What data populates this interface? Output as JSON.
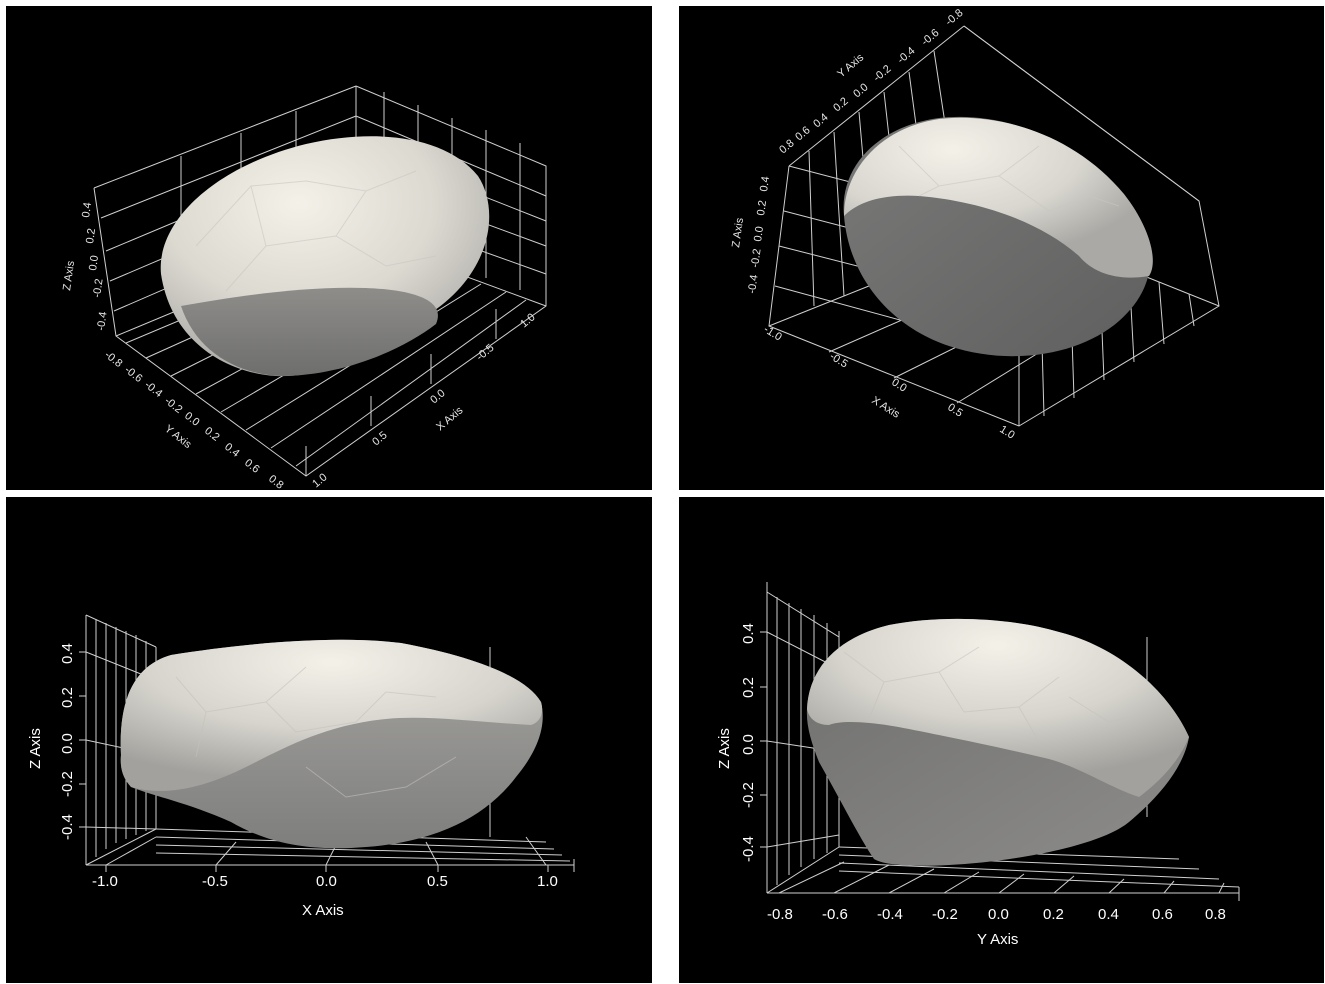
{
  "views": [
    {
      "x_axis": {
        "label": "X Axis",
        "ticks": [
          "-0.5",
          "0.0",
          "0.5",
          "1.0"
        ]
      },
      "y_axis": {
        "label": "Y Axis",
        "ticks": [
          "-0.8",
          "-0.6",
          "-0.4",
          "-0.2",
          "0.0",
          "0.2",
          "0.4",
          "0.6",
          "0.8"
        ]
      },
      "z_axis": {
        "label": "Z Axis",
        "ticks": [
          "-0.4",
          "-0.2",
          "0.0",
          "0.2",
          "0.4"
        ]
      },
      "x_axis_far_tick": "1.0"
    },
    {
      "x_axis": {
        "label": "X Axis",
        "ticks": [
          "-1.0",
          "-0.5",
          "0.0",
          "0.5",
          "1.0"
        ]
      },
      "y_axis": {
        "label": "Y Axis",
        "ticks": [
          "0.8",
          "0.6",
          "0.4",
          "0.2",
          "0.0",
          "-0.2",
          "-0.4",
          "-0.6",
          "-0.8"
        ]
      },
      "z_axis": {
        "label": "Z Axis",
        "ticks": [
          "-0.4",
          "-0.2",
          "0.0",
          "0.2",
          "0.4"
        ]
      }
    },
    {
      "x_axis": {
        "label": "X Axis",
        "ticks": [
          "-1.0",
          "-0.5",
          "0.0",
          "0.5",
          "1.0"
        ]
      },
      "z_axis": {
        "label": "Z Axis",
        "ticks": [
          "-0.4",
          "-0.2",
          "0.0",
          "0.2",
          "0.4"
        ]
      }
    },
    {
      "y_axis": {
        "label": "Y Axis",
        "ticks": [
          "-0.8",
          "-0.6",
          "-0.4",
          "-0.2",
          "0.0",
          "0.2",
          "0.4",
          "0.6",
          "0.8"
        ]
      },
      "z_axis": {
        "label": "Z Axis",
        "ticks": [
          "-0.4",
          "-0.2",
          "0.0",
          "0.2",
          "0.4"
        ]
      }
    }
  ],
  "colors": {
    "background": "#000000",
    "grid": "#cfcfcf",
    "surface_light": "#efece3",
    "surface_mid": "#b9b7b1",
    "surface_dark": "#7c7c7b"
  }
}
